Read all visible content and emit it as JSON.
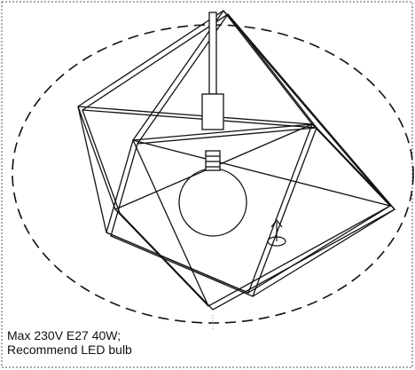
{
  "notes": [
    "Max 230V E27 40W;",
    "Recommend LED bulb"
  ]
}
